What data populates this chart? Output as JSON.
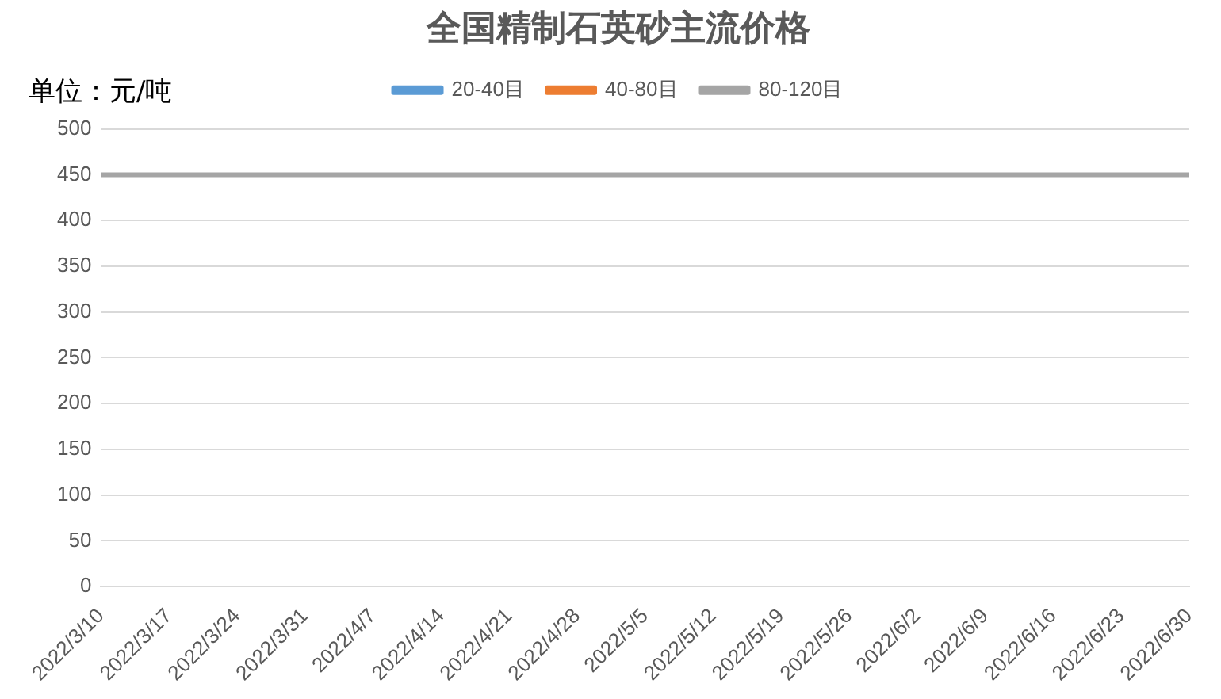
{
  "chart_data": {
    "type": "line",
    "title": "全国精制石英砂主流价格",
    "annotations": [
      "单位：元/吨"
    ],
    "categories": [
      "2022/3/10",
      "2022/3/17",
      "2022/3/24",
      "2022/3/31",
      "2022/4/7",
      "2022/4/14",
      "2022/4/21",
      "2022/4/28",
      "2022/5/5",
      "2022/5/12",
      "2022/5/19",
      "2022/5/26",
      "2022/6/2",
      "2022/6/9",
      "2022/6/16",
      "2022/6/23",
      "2022/6/30"
    ],
    "series": [
      {
        "name": "20-40目",
        "color": "#5b9bd5",
        "values": [
          null,
          null,
          null,
          null,
          null,
          null,
          null,
          null,
          null,
          null,
          null,
          null,
          null,
          null,
          null,
          null,
          null
        ]
      },
      {
        "name": "40-80目",
        "color": "#ed7d31",
        "values": [
          null,
          null,
          null,
          null,
          null,
          null,
          null,
          null,
          null,
          null,
          null,
          null,
          null,
          null,
          null,
          null,
          null
        ]
      },
      {
        "name": "80-120目",
        "color": "#a5a5a5",
        "values": [
          450,
          450,
          450,
          450,
          450,
          450,
          450,
          450,
          450,
          450,
          450,
          450,
          450,
          450,
          450,
          450,
          450
        ]
      }
    ],
    "ylim": [
      0,
      500
    ],
    "yticks": [
      0,
      50,
      100,
      150,
      200,
      250,
      300,
      350,
      400,
      450,
      500
    ],
    "grid": "y",
    "legend": "top",
    "marker": "none",
    "line_style": "solid"
  }
}
